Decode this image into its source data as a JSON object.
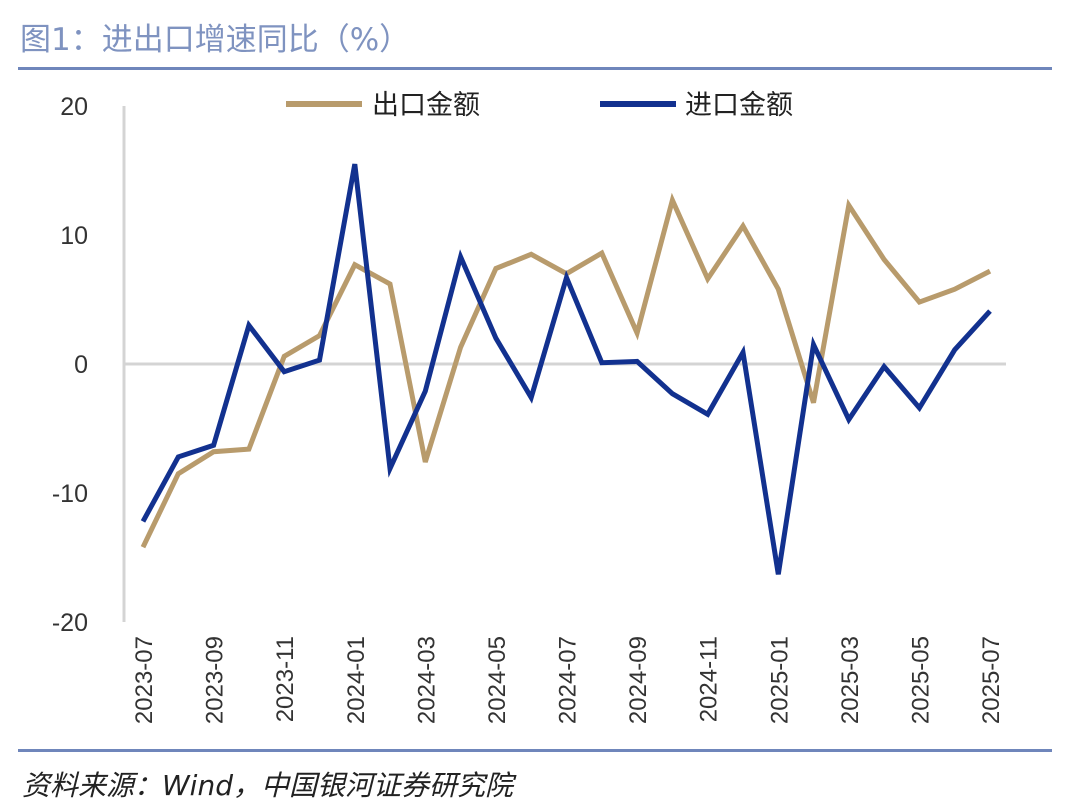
{
  "title": "图1：进出口增速同比（%）",
  "source": "资料来源：Wind，中国银河证券研究院",
  "colors": {
    "export": "#b89b6c",
    "import": "#12318f",
    "axis": "#d4d4d4",
    "text": "#333333"
  },
  "chart_data": {
    "type": "line",
    "ylim": [
      -20,
      20
    ],
    "yticks": [
      -20,
      -10,
      0,
      10,
      20
    ],
    "grid": false,
    "legend_placement": "top-center",
    "x": [
      "2023-07",
      "2023-08",
      "2023-09",
      "2023-10",
      "2023-11",
      "2023-12",
      "2024-01",
      "2024-02",
      "2024-03",
      "2024-04",
      "2024-05",
      "2024-06",
      "2024-07",
      "2024-08",
      "2024-09",
      "2024-10",
      "2024-11",
      "2024-12",
      "2025-01",
      "2025-02",
      "2025-03",
      "2025-04",
      "2025-05",
      "2025-06",
      "2025-07"
    ],
    "xtick_labels": [
      "2023-07",
      "2023-09",
      "2023-11",
      "2024-01",
      "2024-03",
      "2024-05",
      "2024-07",
      "2024-09",
      "2024-11",
      "2025-01",
      "2025-03",
      "2025-05",
      "2025-07"
    ],
    "series": [
      {
        "name": "出口金额",
        "values": [
          -14.2,
          -8.5,
          -6.8,
          -6.6,
          0.6,
          2.2,
          7.7,
          6.2,
          -7.6,
          1.3,
          7.4,
          8.5,
          7.0,
          8.6,
          2.4,
          12.7,
          6.6,
          10.7,
          5.8,
          -3.0,
          12.3,
          8.1,
          4.8,
          5.8,
          7.2
        ]
      },
      {
        "name": "进口金额",
        "values": [
          -12.2,
          -7.2,
          -6.3,
          3.0,
          -0.6,
          0.3,
          15.5,
          -8.1,
          -2.1,
          8.3,
          2.0,
          -2.6,
          6.7,
          0.1,
          0.2,
          -2.3,
          -3.9,
          0.9,
          -16.3,
          1.5,
          -4.3,
          -0.2,
          -3.4,
          1.1,
          4.1
        ]
      }
    ]
  }
}
